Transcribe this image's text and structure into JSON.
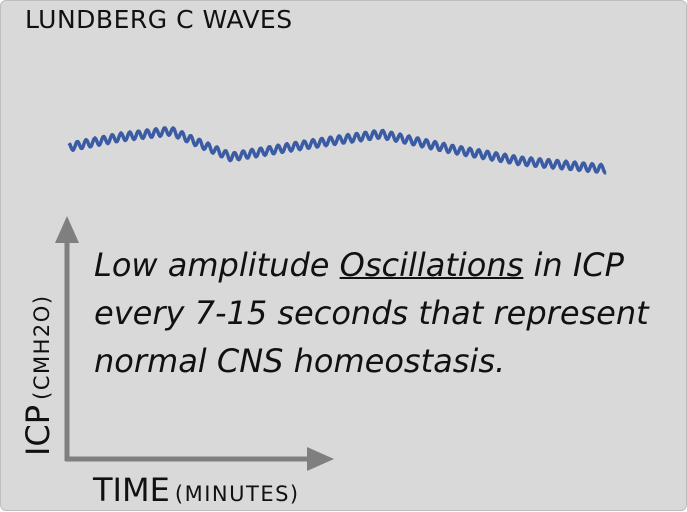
{
  "title": "LUNDBERG C WAVES",
  "description": {
    "before": "Low amplitude",
    "underlined": "Oscillations",
    "after": " in ICP every 7-15 seconds that represent normal CNS homeostasis."
  },
  "y_axis": {
    "label": "ICP",
    "unit": "(CMH2O)"
  },
  "x_axis": {
    "label": "TIME",
    "unit": "(MINUTES)"
  }
}
